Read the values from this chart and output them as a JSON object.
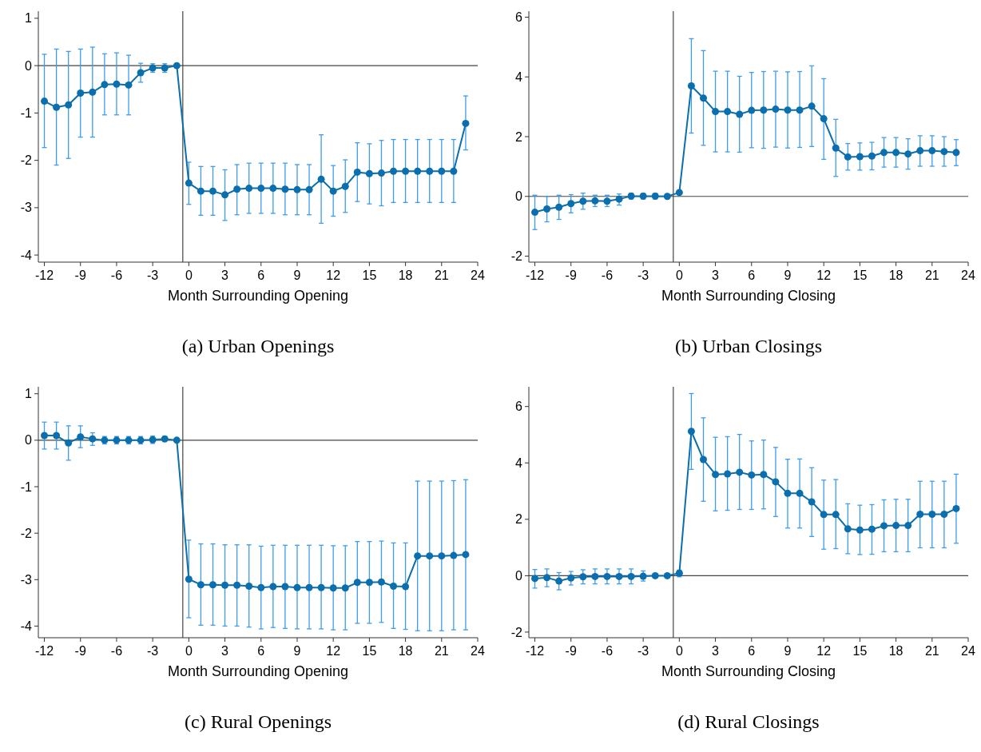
{
  "chart_data": [
    {
      "type": "line",
      "title": "(a) Urban Openings",
      "xlabel": "Month Surrounding Opening",
      "marker": "circle",
      "line_style": "solid",
      "xlim": [
        -12.5,
        24
      ],
      "ylim": [
        -4.15,
        1.15
      ],
      "xticks": [
        -12,
        -9,
        -6,
        -3,
        0,
        3,
        6,
        9,
        12,
        15,
        18,
        21,
        24
      ],
      "yticks": [
        -4,
        -3,
        -2,
        -1,
        0,
        1
      ],
      "ref_lines": [
        {
          "axis": "x",
          "value": -0.5,
          "color": "#444444"
        },
        {
          "axis": "y",
          "value": 0,
          "color": "#444444"
        }
      ],
      "x": [
        -12,
        -11,
        -10,
        -9,
        -8,
        -7,
        -6,
        -5,
        -4,
        -3,
        -2,
        -1,
        0,
        1,
        2,
        3,
        4,
        5,
        6,
        7,
        8,
        9,
        10,
        11,
        12,
        13,
        14,
        15,
        16,
        17,
        18,
        19,
        20,
        21,
        22,
        23
      ],
      "series": [
        {
          "color": "#0b6ead",
          "values": [
            -0.75,
            -0.88,
            -0.83,
            -0.58,
            -0.56,
            -0.4,
            -0.39,
            -0.41,
            -0.15,
            -0.05,
            -0.05,
            0,
            -2.48,
            -2.65,
            -2.65,
            -2.73,
            -2.61,
            -2.59,
            -2.59,
            -2.59,
            -2.61,
            -2.62,
            -2.62,
            -2.4,
            -2.65,
            -2.55,
            -2.25,
            -2.28,
            -2.27,
            -2.23,
            -2.23,
            -2.23,
            -2.23,
            -2.23,
            -2.23,
            -1.22
          ],
          "errors": [
            [
              -1.73,
              0.24
            ],
            [
              -2.1,
              0.35
            ],
            [
              -1.96,
              0.3
            ],
            [
              -1.51,
              0.35
            ],
            [
              -1.51,
              0.39
            ],
            [
              -1.04,
              0.25
            ],
            [
              -1.04,
              0.27
            ],
            [
              -1.04,
              0.22
            ],
            [
              -0.35,
              0.05
            ],
            [
              -0.14,
              0.04
            ],
            [
              -0.14,
              0.04
            ],
            null,
            [
              -2.93,
              -2.04
            ],
            [
              -3.16,
              -2.13
            ],
            [
              -3.16,
              -2.13
            ],
            [
              -3.27,
              -2.2
            ],
            [
              -3.15,
              -2.09
            ],
            [
              -3.12,
              -2.06
            ],
            [
              -3.12,
              -2.06
            ],
            [
              -3.12,
              -2.06
            ],
            [
              -3.15,
              -2.06
            ],
            [
              -3.15,
              -2.09
            ],
            [
              -3.15,
              -2.09
            ],
            [
              -3.33,
              -1.46
            ],
            [
              -3.18,
              -2.11
            ],
            [
              -3.1,
              -1.99
            ],
            [
              -2.87,
              -1.63
            ],
            [
              -2.92,
              -1.65
            ],
            [
              -2.96,
              -1.58
            ],
            [
              -2.89,
              -1.56
            ],
            [
              -2.89,
              -1.56
            ],
            [
              -2.89,
              -1.56
            ],
            [
              -2.89,
              -1.56
            ],
            [
              -2.89,
              -1.56
            ],
            [
              -2.89,
              -1.56
            ],
            [
              -1.78,
              -0.64
            ]
          ]
        }
      ]
    },
    {
      "type": "line",
      "title": "(b) Urban Closings",
      "xlabel": "Month Surrounding Closing",
      "marker": "circle",
      "line_style": "solid",
      "xlim": [
        -12.5,
        24
      ],
      "ylim": [
        -2.2,
        6.2
      ],
      "xticks": [
        -12,
        -9,
        -6,
        -3,
        0,
        3,
        6,
        9,
        12,
        15,
        18,
        21,
        24
      ],
      "yticks": [
        -2,
        0,
        2,
        4,
        6
      ],
      "ref_lines": [
        {
          "axis": "x",
          "value": -0.5,
          "color": "#444444"
        },
        {
          "axis": "y",
          "value": 0,
          "color": "#444444"
        }
      ],
      "x": [
        -12,
        -11,
        -10,
        -9,
        -8,
        -7,
        -6,
        -5,
        -4,
        -3,
        -2,
        -1,
        0,
        1,
        2,
        3,
        4,
        5,
        6,
        7,
        8,
        9,
        10,
        11,
        12,
        13,
        14,
        15,
        16,
        17,
        18,
        19,
        20,
        21,
        22,
        23
      ],
      "series": [
        {
          "color": "#0b6ead",
          "values": [
            -0.53,
            -0.42,
            -0.36,
            -0.24,
            -0.16,
            -0.15,
            -0.16,
            -0.09,
            0.01,
            0.01,
            0.01,
            0,
            0.13,
            3.7,
            3.29,
            2.84,
            2.84,
            2.75,
            2.88,
            2.89,
            2.92,
            2.89,
            2.89,
            3.02,
            2.6,
            1.62,
            1.32,
            1.33,
            1.35,
            1.47,
            1.47,
            1.42,
            1.53,
            1.53,
            1.5,
            1.47
          ],
          "errors": [
            [
              -1.11,
              0.04
            ],
            [
              -0.85,
              0.0
            ],
            [
              -0.77,
              0.04
            ],
            [
              -0.55,
              0.06
            ],
            [
              -0.43,
              0.11
            ],
            [
              -0.34,
              0.04
            ],
            [
              -0.34,
              0.04
            ],
            [
              -0.29,
              0.08
            ],
            [
              -0.09,
              0.11
            ],
            [
              -0.09,
              0.1
            ],
            [
              -0.09,
              0.1
            ],
            null,
            null,
            [
              2.12,
              5.28
            ],
            [
              1.71,
              4.88
            ],
            [
              1.49,
              4.19
            ],
            [
              1.49,
              4.19
            ],
            [
              1.48,
              4.02
            ],
            [
              1.63,
              4.15
            ],
            [
              1.61,
              4.18
            ],
            [
              1.65,
              4.19
            ],
            [
              1.62,
              4.17
            ],
            [
              1.64,
              4.18
            ],
            [
              1.67,
              4.37
            ],
            [
              1.24,
              3.94
            ],
            [
              0.67,
              2.58
            ],
            [
              0.88,
              1.77
            ],
            [
              0.88,
              1.79
            ],
            [
              0.89,
              1.81
            ],
            [
              0.98,
              1.97
            ],
            [
              0.98,
              1.97
            ],
            [
              0.91,
              1.93
            ],
            [
              1.01,
              2.03
            ],
            [
              1.01,
              2.03
            ],
            [
              1.01,
              2.0
            ],
            [
              1.03,
              1.9
            ]
          ]
        }
      ]
    },
    {
      "type": "line",
      "title": "(c) Rural Openings",
      "xlabel": "Month Surrounding Opening",
      "marker": "circle",
      "line_style": "solid",
      "xlim": [
        -12.5,
        24
      ],
      "ylim": [
        -4.25,
        1.15
      ],
      "xticks": [
        -12,
        -9,
        -6,
        -3,
        0,
        3,
        6,
        9,
        12,
        15,
        18,
        21,
        24
      ],
      "yticks": [
        -4,
        -3,
        -2,
        -1,
        0,
        1
      ],
      "ref_lines": [
        {
          "axis": "x",
          "value": -0.5,
          "color": "#444444"
        },
        {
          "axis": "y",
          "value": 0,
          "color": "#444444"
        }
      ],
      "x": [
        -12,
        -11,
        -10,
        -9,
        -8,
        -7,
        -6,
        -5,
        -4,
        -3,
        -2,
        -1,
        0,
        1,
        2,
        3,
        4,
        5,
        6,
        7,
        8,
        9,
        10,
        11,
        12,
        13,
        14,
        15,
        16,
        17,
        18,
        19,
        20,
        21,
        22,
        23
      ],
      "series": [
        {
          "color": "#0b6ead",
          "values": [
            0.1,
            0.1,
            -0.06,
            0.07,
            0.03,
            0,
            0,
            0,
            0,
            0.01,
            0.03,
            0,
            -2.99,
            -3.11,
            -3.11,
            -3.12,
            -3.12,
            -3.14,
            -3.17,
            -3.15,
            -3.15,
            -3.17,
            -3.17,
            -3.17,
            -3.18,
            -3.18,
            -3.06,
            -3.06,
            -3.05,
            -3.14,
            -3.15,
            -2.49,
            -2.49,
            -2.49,
            -2.48,
            -2.46
          ],
          "errors": [
            [
              -0.19,
              0.39
            ],
            [
              -0.19,
              0.39
            ],
            [
              -0.43,
              0.31
            ],
            [
              -0.16,
              0.31
            ],
            [
              -0.11,
              0.16
            ],
            [
              -0.08,
              0.08
            ],
            [
              -0.08,
              0.08
            ],
            [
              -0.08,
              0.08
            ],
            [
              -0.08,
              0.08
            ],
            [
              -0.07,
              0.09
            ],
            [
              -0.03,
              0.08
            ],
            null,
            [
              -3.82,
              -2.15
            ],
            [
              -3.98,
              -2.23
            ],
            [
              -3.98,
              -2.23
            ],
            [
              -4.0,
              -2.25
            ],
            [
              -4.0,
              -2.25
            ],
            [
              -4.02,
              -2.25
            ],
            [
              -4.06,
              -2.28
            ],
            [
              -4.03,
              -2.26
            ],
            [
              -4.05,
              -2.26
            ],
            [
              -4.06,
              -2.26
            ],
            [
              -4.06,
              -2.26
            ],
            [
              -4.06,
              -2.26
            ],
            [
              -4.08,
              -2.27
            ],
            [
              -4.08,
              -2.27
            ],
            [
              -3.94,
              -2.18
            ],
            [
              -3.94,
              -2.18
            ],
            [
              -3.92,
              -2.17
            ],
            [
              -4.05,
              -2.21
            ],
            [
              -4.07,
              -2.21
            ],
            [
              -4.1,
              -0.88
            ],
            [
              -4.1,
              -0.88
            ],
            [
              -4.1,
              -0.88
            ],
            [
              -4.08,
              -0.87
            ],
            [
              -4.08,
              -0.85
            ]
          ]
        }
      ]
    },
    {
      "type": "line",
      "title": "(d) Rural Closings",
      "xlabel": "Month Surrounding Closing",
      "marker": "circle",
      "line_style": "solid",
      "xlim": [
        -12.5,
        24
      ],
      "ylim": [
        -2.2,
        6.7
      ],
      "xticks": [
        -12,
        -9,
        -6,
        -3,
        0,
        3,
        6,
        9,
        12,
        15,
        18,
        21,
        24
      ],
      "yticks": [
        -2,
        0,
        2,
        4,
        6
      ],
      "ref_lines": [
        {
          "axis": "x",
          "value": -0.5,
          "color": "#444444"
        },
        {
          "axis": "y",
          "value": 0,
          "color": "#444444"
        }
      ],
      "x": [
        -12,
        -11,
        -10,
        -9,
        -8,
        -7,
        -6,
        -5,
        -4,
        -3,
        -2,
        -1,
        0,
        1,
        2,
        3,
        4,
        5,
        6,
        7,
        8,
        9,
        10,
        11,
        12,
        13,
        14,
        15,
        16,
        17,
        18,
        19,
        20,
        21,
        22,
        23
      ],
      "series": [
        {
          "color": "#0b6ead",
          "values": [
            -0.1,
            -0.07,
            -0.19,
            -0.08,
            -0.04,
            -0.03,
            -0.03,
            -0.03,
            -0.03,
            -0.02,
            0,
            0,
            0.09,
            5.12,
            4.12,
            3.59,
            3.61,
            3.67,
            3.57,
            3.59,
            3.33,
            2.92,
            2.92,
            2.62,
            2.17,
            2.17,
            1.66,
            1.62,
            1.65,
            1.77,
            1.78,
            1.78,
            2.18,
            2.18,
            2.18,
            2.38
          ],
          "errors": [
            [
              -0.44,
              0.22
            ],
            [
              -0.39,
              0.24
            ],
            [
              -0.5,
              0.11
            ],
            [
              -0.33,
              0.15
            ],
            [
              -0.29,
              0.21
            ],
            [
              -0.29,
              0.24
            ],
            [
              -0.29,
              0.24
            ],
            [
              -0.29,
              0.24
            ],
            [
              -0.29,
              0.24
            ],
            [
              -0.19,
              0.17
            ],
            null,
            null,
            [
              -0.04,
              0.2
            ],
            [
              3.77,
              6.46
            ],
            [
              2.64,
              5.6
            ],
            [
              2.3,
              4.91
            ],
            [
              2.32,
              4.93
            ],
            [
              2.35,
              5.01
            ],
            [
              2.35,
              4.78
            ],
            [
              2.37,
              4.81
            ],
            [
              2.1,
              4.55
            ],
            [
              1.69,
              4.13
            ],
            [
              1.69,
              4.14
            ],
            [
              1.39,
              3.83
            ],
            [
              0.94,
              3.39
            ],
            [
              0.96,
              3.41
            ],
            [
              0.78,
              2.55
            ],
            [
              0.75,
              2.5
            ],
            [
              0.76,
              2.52
            ],
            [
              0.85,
              2.69
            ],
            [
              0.85,
              2.71
            ],
            [
              0.85,
              2.71
            ],
            [
              0.99,
              3.35
            ],
            [
              0.99,
              3.35
            ],
            [
              0.99,
              3.35
            ],
            [
              1.15,
              3.6
            ]
          ]
        }
      ]
    }
  ]
}
